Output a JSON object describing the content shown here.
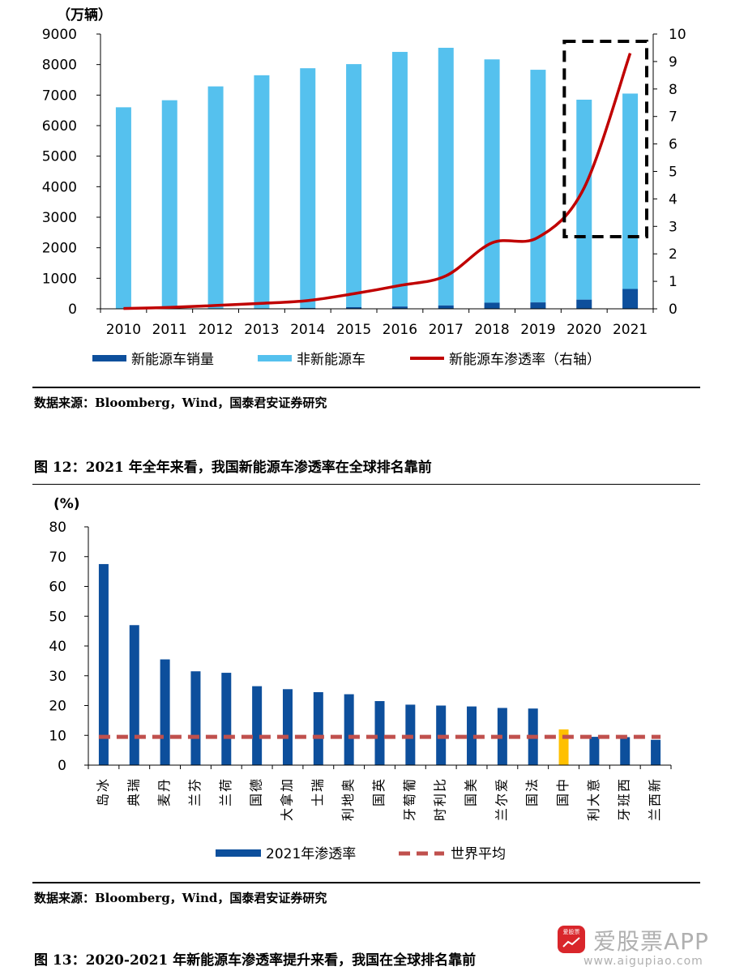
{
  "charts": {
    "chart1": {
      "y_unit": "（万辆）",
      "legend": {
        "nev_sales": "新能源车销量",
        "non_nev": "非新能源车",
        "penetration": "新能源车渗透率（右轴）"
      }
    },
    "chart2": {
      "y_unit": "(%)",
      "legend": {
        "rate": "2021年渗透率",
        "world_avg": "世界平均"
      }
    }
  },
  "source_note_1": "数据来源：Bloomberg，Wind，国泰君安证券研究",
  "caption_12": "图 12：2021 年全年来看，我国新能源车渗透率在全球排名靠前",
  "source_note_2": "数据来源：Bloomberg，Wind，国泰君安证券研究",
  "caption_13": "图 13：2020-2021 年新能源车渗透率提升来看，我国在全球排名靠前",
  "watermark": {
    "logo_text": "爱股票",
    "title": "爱股票APP",
    "url": "www.aigupiao.com"
  },
  "colors": {
    "nev_sales": "#0d4f9c",
    "non_nev": "#55c1ee",
    "penetration": "#c00000",
    "rate_bar": "#0d4f9c",
    "china_bar": "#ffc000",
    "world_avg": "#c0504d"
  },
  "chart_data": [
    {
      "type": "bar",
      "stacked": true,
      "categories": [
        "2010",
        "2011",
        "2012",
        "2013",
        "2014",
        "2015",
        "2016",
        "2017",
        "2018",
        "2019",
        "2020",
        "2021"
      ],
      "series": [
        {
          "name": "新能源车销量",
          "axis": "left",
          "values": [
            1,
            2,
            5,
            10,
            30,
            55,
            75,
            110,
            200,
            210,
            300,
            650
          ]
        },
        {
          "name": "非新能源车",
          "axis": "left",
          "values": [
            6600,
            6830,
            7280,
            7640,
            7850,
            7960,
            8340,
            8440,
            7970,
            7620,
            6550,
            6400
          ]
        },
        {
          "name": "新能源车渗透率（右轴）",
          "type": "line",
          "axis": "right",
          "values": [
            0.01,
            0.05,
            0.12,
            0.2,
            0.3,
            0.55,
            0.85,
            1.2,
            2.4,
            2.6,
            4.4,
            9.3
          ]
        }
      ],
      "ylim": [
        0,
        9000
      ],
      "y_ticks": [
        0,
        1000,
        2000,
        3000,
        4000,
        5000,
        6000,
        7000,
        8000,
        9000
      ],
      "y2lim": [
        0,
        10
      ],
      "y2_ticks": [
        0,
        1,
        2,
        3,
        4,
        5,
        6,
        7,
        8,
        9,
        10
      ],
      "ylabel": "（万辆）",
      "highlight_box": [
        "2020",
        "2021"
      ]
    },
    {
      "type": "bar",
      "categories": [
        "冰岛",
        "瑞典",
        "丹麦",
        "芬兰",
        "荷兰",
        "德国",
        "加拿大",
        "瑞士",
        "奥地利",
        "英国",
        "葡萄牙",
        "比利时",
        "美国",
        "爱尔兰",
        "法国",
        "中国",
        "意大利",
        "西班牙",
        "新西兰"
      ],
      "series": [
        {
          "name": "2021年渗透率",
          "values": [
            67.5,
            47,
            35.5,
            31.5,
            31,
            26.5,
            25.5,
            24.5,
            23.8,
            21.5,
            20.3,
            20,
            19.7,
            19.2,
            19,
            12,
            9.5,
            9.4,
            8.5
          ]
        },
        {
          "name": "世界平均",
          "type": "line",
          "values": [
            9.5,
            9.5,
            9.5,
            9.5,
            9.5,
            9.5,
            9.5,
            9.5,
            9.5,
            9.5,
            9.5,
            9.5,
            9.5,
            9.5,
            9.5,
            9.5,
            9.5,
            9.5,
            9.5
          ]
        }
      ],
      "highlight_category": "中国",
      "ylim": [
        0,
        80
      ],
      "y_ticks": [
        0,
        10,
        20,
        30,
        40,
        50,
        60,
        70,
        80
      ],
      "ylabel": "(%)"
    }
  ]
}
